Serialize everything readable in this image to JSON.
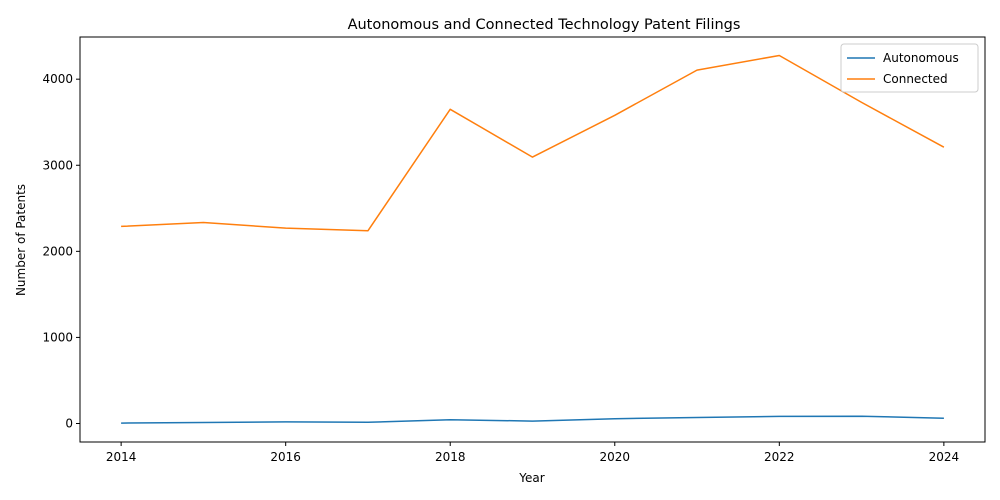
{
  "chart_data": {
    "type": "line",
    "title": "Autonomous and Connected Technology Patent Filings",
    "xlabel": "Year",
    "ylabel": "Number of Patents",
    "x": [
      2014,
      2015,
      2016,
      2017,
      2018,
      2019,
      2020,
      2021,
      2022,
      2023,
      2024
    ],
    "xlim": [
      2013.5,
      2024.5
    ],
    "ylim": [
      -215,
      4490
    ],
    "xticks": [
      2014,
      2016,
      2018,
      2020,
      2022,
      2024
    ],
    "yticks": [
      0,
      1000,
      2000,
      3000,
      4000
    ],
    "grid": false,
    "legend_position": "top-right",
    "series": [
      {
        "name": "Autonomous",
        "color": "#1f77b4",
        "values": [
          5,
          12,
          18,
          14,
          44,
          28,
          56,
          70,
          82,
          85,
          62
        ]
      },
      {
        "name": "Connected",
        "color": "#ff7f0e",
        "values": [
          2290,
          2335,
          2270,
          2240,
          3650,
          3095,
          3580,
          4105,
          4275,
          3730,
          3210
        ]
      }
    ]
  }
}
